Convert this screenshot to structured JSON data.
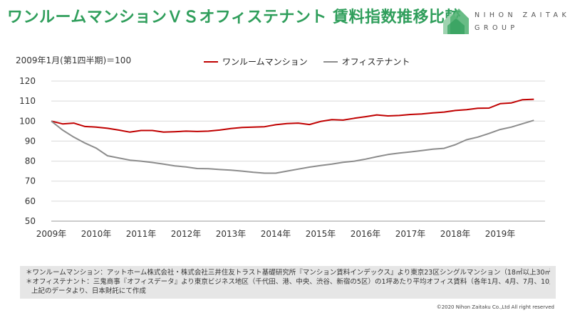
{
  "header": {
    "title": "ワンルームマンションＶＳオフィステナント 賃料指数推移比較",
    "logo_line1": "NIHON ZAITAKU",
    "logo_line2": "GROUP",
    "brand_color": "#2f9e5b"
  },
  "chart_data": {
    "type": "line",
    "title": "ワンルームマンションＶＳオフィステナント 賃料指数推移比較",
    "base_label": "2009年1月(第1四半期)＝100",
    "ylim": [
      50,
      120
    ],
    "yticks": [
      50,
      60,
      70,
      80,
      90,
      100,
      110,
      120
    ],
    "xlim": [
      2009,
      2020
    ],
    "xticks": [
      2009,
      2010,
      2011,
      2012,
      2013,
      2014,
      2015,
      2016,
      2017,
      2018,
      2019
    ],
    "xtick_labels": [
      "2009年",
      "2010年",
      "2011年",
      "2012年",
      "2013年",
      "2014年",
      "2015年",
      "2016年",
      "2017年",
      "2018年",
      "2019年"
    ],
    "legend_position": "top-center",
    "series": [
      {
        "name": "ワンルームマンション",
        "color": "#c00000",
        "x": [
          2009,
          2009.25,
          2009.5,
          2009.75,
          2010,
          2010.25,
          2010.5,
          2010.75,
          2011,
          2011.25,
          2011.5,
          2011.75,
          2012,
          2012.25,
          2012.5,
          2012.75,
          2013,
          2013.25,
          2013.5,
          2013.75,
          2014,
          2014.25,
          2014.5,
          2014.75,
          2015,
          2015.25,
          2015.5,
          2015.75,
          2016,
          2016.25,
          2016.5,
          2016.75,
          2017,
          2017.25,
          2017.5,
          2017.75,
          2018,
          2018.25,
          2018.5,
          2018.75,
          2019,
          2019.25,
          2019.5,
          2019.75
        ],
        "values": [
          100,
          98.6,
          99,
          97.3,
          97,
          96.4,
          95.5,
          94.5,
          95.3,
          95.3,
          94.5,
          94.7,
          95,
          94.8,
          95,
          95.5,
          96.3,
          96.8,
          97,
          97.2,
          98.2,
          98.8,
          99,
          98.3,
          99.8,
          100.7,
          100.5,
          101.4,
          102.2,
          103.1,
          102.6,
          102.8,
          103.3,
          103.6,
          104.1,
          104.5,
          105.3,
          105.7,
          106.4,
          106.5,
          108.7,
          109.1,
          110.7,
          110.9
        ]
      },
      {
        "name": "オフィステナント",
        "color": "#8c8c8c",
        "x": [
          2009,
          2009.25,
          2009.5,
          2009.75,
          2010,
          2010.25,
          2010.5,
          2010.75,
          2011,
          2011.25,
          2011.5,
          2011.75,
          2012,
          2012.25,
          2012.5,
          2012.75,
          2013,
          2013.25,
          2013.5,
          2013.75,
          2014,
          2014.25,
          2014.5,
          2014.75,
          2015,
          2015.25,
          2015.5,
          2015.75,
          2016,
          2016.25,
          2016.5,
          2016.75,
          2017,
          2017.25,
          2017.5,
          2017.75,
          2018,
          2018.25,
          2018.5,
          2018.75,
          2019,
          2019.25,
          2019.5,
          2019.75
        ],
        "values": [
          100,
          95.5,
          92,
          89,
          86.5,
          82.7,
          81.6,
          80.5,
          80,
          79.3,
          78.5,
          77.6,
          77.1,
          76.3,
          76.2,
          75.8,
          75.5,
          75,
          74.4,
          74,
          74,
          75,
          76,
          77,
          77.8,
          78.5,
          79.4,
          80,
          81,
          82.2,
          83.3,
          84,
          84.6,
          85.3,
          86,
          86.4,
          88.2,
          90.7,
          92,
          93.8,
          95.8,
          97,
          98.7,
          100.4
        ]
      }
    ]
  },
  "notes": {
    "line1": "＊ワンルームマンション：アットホーム株式会社・株式会社三井住友トラスト基礎研究所『マンション賃料インデックス』より東京23区シングルマンション（18㎡以上30㎡未満）の四半期データ",
    "line2": "＊オフィステナント：三鬼商事『オフィスデータ』より東京ビジネス地区（千代田、港、中央、渋谷、新宿の5区）の1坪あたり平均オフィス賃料（各年1月、4月、7月、10月時点）",
    "line3": "上記のデータより、日本財託にて作成"
  },
  "footer": {
    "copyright": "©2020 Nihon Zaitaku Co.,Ltd All right reserved"
  }
}
